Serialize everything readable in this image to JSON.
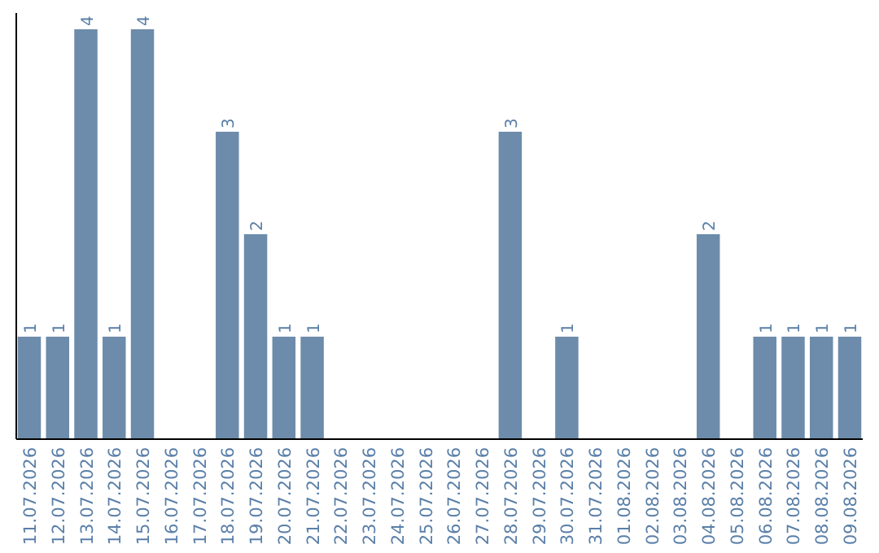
{
  "chart_data": {
    "type": "bar",
    "color": "#6d8cab",
    "categories": [
      "11.07.2026",
      "12.07.2026",
      "13.07.2026",
      "14.07.2026",
      "15.07.2026",
      "16.07.2026",
      "17.07.2026",
      "18.07.2026",
      "19.07.2026",
      "20.07.2026",
      "21.07.2026",
      "22.07.2026",
      "23.07.2026",
      "24.07.2026",
      "25.07.2026",
      "26.07.2026",
      "27.07.2026",
      "28.07.2026",
      "29.07.2026",
      "30.07.2026",
      "31.07.2026",
      "01.08.2026",
      "02.08.2026",
      "03.08.2026",
      "04.08.2026",
      "05.08.2026",
      "06.08.2026",
      "07.08.2026",
      "08.08.2026",
      "09.08.2026"
    ],
    "values": [
      1,
      1,
      4,
      1,
      4,
      0,
      0,
      3,
      2,
      1,
      1,
      0,
      0,
      0,
      0,
      0,
      0,
      3,
      0,
      1,
      0,
      0,
      0,
      0,
      2,
      0,
      1,
      1,
      1,
      1
    ],
    "value_labels": [
      "1",
      "1",
      "4",
      "1",
      "4",
      null,
      null,
      "3",
      "2",
      "1",
      "1",
      null,
      null,
      null,
      null,
      null,
      null,
      "3",
      null,
      "1",
      null,
      null,
      null,
      null,
      "2",
      null,
      "1",
      "1",
      "1",
      "1"
    ],
    "grid": false
  }
}
